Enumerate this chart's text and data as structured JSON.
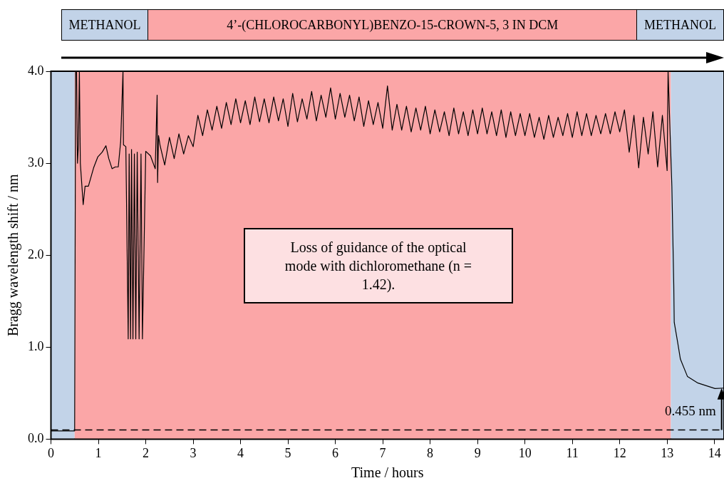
{
  "chart_data": {
    "type": "line",
    "xlabel": "Time / hours",
    "ylabel": "Bragg wavelength shift / nm",
    "xlim": [
      0,
      14.2
    ],
    "xticks": [
      0,
      1,
      2,
      3,
      4,
      5,
      6,
      7,
      8,
      9,
      10,
      11,
      12,
      13,
      14
    ],
    "ylim": [
      0,
      4
    ],
    "yticks": [
      {
        "value": 0,
        "label": "0.0"
      },
      {
        "value": 1,
        "label": "1.0"
      },
      {
        "value": 2,
        "label": "2.0"
      },
      {
        "value": 3,
        "label": "3.0"
      },
      {
        "value": 4,
        "label": "4.0"
      }
    ],
    "grid": false,
    "legend": false,
    "marker": "none",
    "line_style": "solid",
    "bands": [
      {
        "axis": "x",
        "from": 0,
        "to": 0.5,
        "color": "#c2d3e8"
      },
      {
        "axis": "x",
        "from": 0.5,
        "to": 13.08,
        "color": "#fba6a7"
      },
      {
        "axis": "x",
        "from": 13.08,
        "to": 14.2,
        "color": "#c2d3e8"
      }
    ],
    "ref_lines": [
      {
        "axis": "y",
        "value": 0.1,
        "line_style": "dashed",
        "color": "#000000"
      }
    ],
    "annotations": [
      "METHANOL",
      "4’-(CHLOROCARBONYL)BENZO-15-CROWN-5, 3 IN DCM",
      "METHANOL",
      "Loss of guidance of the optical mode with dichloromethane (n = 1.42).",
      {
        "text": "0.455 nm",
        "x": 14.15,
        "y": 0.555
      }
    ],
    "series": [
      {
        "color": "#000000",
        "x": [
          0,
          0.25,
          0.5,
          0.52,
          0.54,
          0.56,
          0.58,
          0.6,
          0.62,
          0.68,
          0.72,
          0.79,
          0.9,
          0.99,
          1.08,
          1.16,
          1.22,
          1.29,
          1.36,
          1.42,
          1.47,
          1.52,
          1.53,
          1.58,
          1.63,
          1.65,
          1.68,
          1.7,
          1.73,
          1.76,
          1.79,
          1.82,
          1.86,
          1.9,
          1.93,
          2.0,
          2.1,
          2.2,
          2.24,
          2.25,
          2.27,
          2.3,
          2.4,
          2.5,
          2.6,
          2.7,
          2.8,
          2.9,
          3.0,
          3.1,
          3.2,
          3.3,
          3.4,
          3.5,
          3.6,
          3.7,
          3.8,
          3.9,
          4.0,
          4.1,
          4.2,
          4.3,
          4.4,
          4.5,
          4.6,
          4.7,
          4.8,
          4.9,
          5.0,
          5.1,
          5.2,
          5.3,
          5.4,
          5.5,
          5.6,
          5.7,
          5.8,
          5.9,
          6.0,
          6.1,
          6.2,
          6.3,
          6.4,
          6.5,
          6.6,
          6.7,
          6.8,
          6.9,
          7.0,
          7.1,
          7.2,
          7.3,
          7.4,
          7.5,
          7.6,
          7.7,
          7.8,
          7.9,
          8.0,
          8.1,
          8.2,
          8.3,
          8.4,
          8.5,
          8.6,
          8.7,
          8.8,
          8.9,
          9.0,
          9.1,
          9.2,
          9.3,
          9.4,
          9.5,
          9.6,
          9.7,
          9.8,
          9.9,
          10.0,
          10.1,
          10.2,
          10.3,
          10.4,
          10.5,
          10.6,
          10.7,
          10.8,
          10.9,
          11.0,
          11.1,
          11.2,
          11.3,
          11.4,
          11.5,
          11.6,
          11.7,
          11.8,
          11.9,
          12.0,
          12.1,
          12.2,
          12.3,
          12.4,
          12.5,
          12.6,
          12.7,
          12.8,
          12.9,
          13.0,
          13.02,
          13.1,
          13.14,
          13.15,
          13.22,
          13.28,
          13.43,
          13.65,
          14.01,
          14.2
        ],
        "values": [
          0.09,
          0.09,
          0.09,
          4.0,
          4.0,
          3.0,
          3.2,
          4.0,
          3.0,
          2.55,
          2.75,
          2.75,
          2.95,
          3.07,
          3.12,
          3.19,
          3.05,
          2.94,
          2.96,
          2.96,
          3.23,
          4.0,
          3.2,
          3.18,
          1.09,
          3.1,
          1.09,
          3.15,
          1.09,
          3.1,
          1.09,
          3.12,
          1.09,
          3.1,
          1.09,
          3.13,
          3.08,
          2.94,
          3.74,
          2.79,
          3.3,
          3.2,
          2.98,
          3.28,
          3.05,
          3.32,
          3.1,
          3.3,
          3.18,
          3.52,
          3.3,
          3.58,
          3.36,
          3.62,
          3.38,
          3.66,
          3.42,
          3.7,
          3.44,
          3.68,
          3.42,
          3.72,
          3.45,
          3.7,
          3.44,
          3.72,
          3.46,
          3.7,
          3.4,
          3.76,
          3.45,
          3.7,
          3.48,
          3.78,
          3.46,
          3.74,
          3.5,
          3.82,
          3.48,
          3.76,
          3.5,
          3.74,
          3.46,
          3.72,
          3.4,
          3.68,
          3.42,
          3.66,
          3.38,
          3.84,
          3.36,
          3.64,
          3.36,
          3.62,
          3.34,
          3.6,
          3.36,
          3.62,
          3.32,
          3.58,
          3.34,
          3.56,
          3.3,
          3.6,
          3.32,
          3.56,
          3.3,
          3.58,
          3.32,
          3.6,
          3.32,
          3.56,
          3.3,
          3.58,
          3.28,
          3.56,
          3.3,
          3.54,
          3.3,
          3.54,
          3.28,
          3.5,
          3.26,
          3.52,
          3.28,
          3.5,
          3.3,
          3.54,
          3.28,
          3.56,
          3.3,
          3.54,
          3.3,
          3.52,
          3.32,
          3.54,
          3.32,
          3.56,
          3.34,
          3.58,
          3.12,
          3.52,
          2.95,
          3.5,
          3.1,
          3.56,
          2.96,
          3.52,
          2.92,
          4.0,
          2.75,
          1.68,
          1.27,
          1.06,
          0.87,
          0.68,
          0.61,
          0.55,
          0.555
        ]
      }
    ]
  }
}
